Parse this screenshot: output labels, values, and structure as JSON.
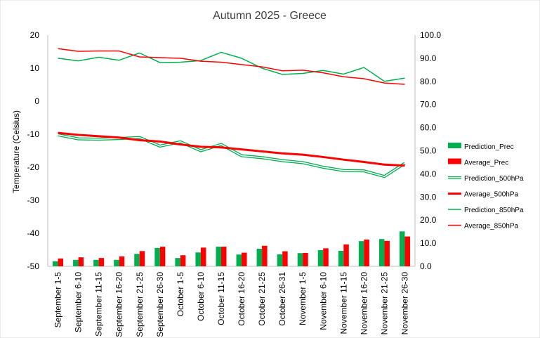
{
  "chart_data": {
    "type": "combo",
    "title": "Autumn 2025 - Greece",
    "ylabel_left": "Temperature (Celsius)",
    "ylabel_right": "",
    "xlabel": "",
    "y_left_range": [
      -50,
      20
    ],
    "y_left_ticks": [
      "20",
      "10",
      "0",
      "-10",
      "-20",
      "-30",
      "-40",
      "-50"
    ],
    "y_right_range": [
      0,
      100
    ],
    "y_right_ticks": [
      "100.0",
      "90.0",
      "80.0",
      "70.0",
      "60.0",
      "50.0",
      "40.0",
      "30.0",
      "20.0",
      "10.0",
      "0.0"
    ],
    "categories": [
      "September 1-5",
      "September 6-10",
      "September 11-15",
      "September 16-20",
      "September 21-25",
      "September 26-30",
      "October 1-5",
      "October 6-10",
      "October 11-15",
      "October 16-20",
      "October 21-25",
      "October 26-31",
      "November 1-5",
      "November 6-10",
      "November 11-15",
      "November 16-20",
      "November 21-25",
      "November 26-30"
    ],
    "grid": false,
    "legend_position": "right",
    "colors": {
      "prediction": "#00b050",
      "average": "#ff0000"
    },
    "series": [
      {
        "name": "Prediction_Prec",
        "kind": "bar",
        "axis": "right",
        "color": "#00b050",
        "values": [
          2.2,
          2.8,
          2.8,
          2.8,
          5.4,
          7.9,
          3.6,
          6.0,
          8.5,
          5.1,
          7.6,
          5.2,
          5.7,
          7.0,
          6.7,
          10.9,
          11.8,
          15.1
        ]
      },
      {
        "name": "Average_Prec",
        "kind": "bar",
        "axis": "right",
        "color": "#ff0000",
        "values": [
          3.4,
          3.9,
          3.6,
          4.3,
          6.6,
          8.5,
          4.8,
          8.1,
          8.5,
          5.9,
          8.9,
          6.5,
          5.8,
          7.8,
          9.5,
          11.6,
          11.0,
          12.9
        ]
      },
      {
        "name": "Prediction_500hPa",
        "kind": "line-double",
        "axis": "left",
        "color": "#00b050",
        "values": [
          -10.2,
          -11.4,
          -11.5,
          -11.3,
          -11.0,
          -13.6,
          -12.3,
          -15.0,
          -13.1,
          -16.5,
          -17.1,
          -18.0,
          -18.6,
          -20.0,
          -21.0,
          -21.1,
          -22.8,
          -18.8
        ]
      },
      {
        "name": "Average_500hPa",
        "kind": "line",
        "axis": "left",
        "color": "#ff0000",
        "values": [
          -9.6,
          -10.2,
          -10.6,
          -11.0,
          -11.8,
          -12.2,
          -13.1,
          -13.8,
          -14.0,
          -14.6,
          -15.2,
          -15.8,
          -16.2,
          -16.9,
          -17.7,
          -18.4,
          -19.2,
          -19.5
        ]
      },
      {
        "name": "Prediction_850hPa",
        "kind": "line",
        "axis": "left",
        "color": "#00b050",
        "values": [
          13.0,
          12.2,
          13.3,
          12.4,
          14.6,
          11.7,
          11.8,
          12.3,
          14.8,
          13.0,
          10.0,
          8.1,
          8.4,
          9.3,
          8.2,
          10.2,
          6.0,
          7.0
        ]
      },
      {
        "name": "Average_850hPa",
        "kind": "line",
        "axis": "left",
        "color": "#ff0000",
        "values": [
          15.9,
          15.1,
          15.2,
          15.2,
          13.4,
          13.2,
          13.0,
          12.1,
          11.8,
          11.1,
          10.4,
          9.2,
          9.4,
          8.6,
          7.4,
          6.8,
          5.5,
          5.1
        ]
      }
    ]
  }
}
